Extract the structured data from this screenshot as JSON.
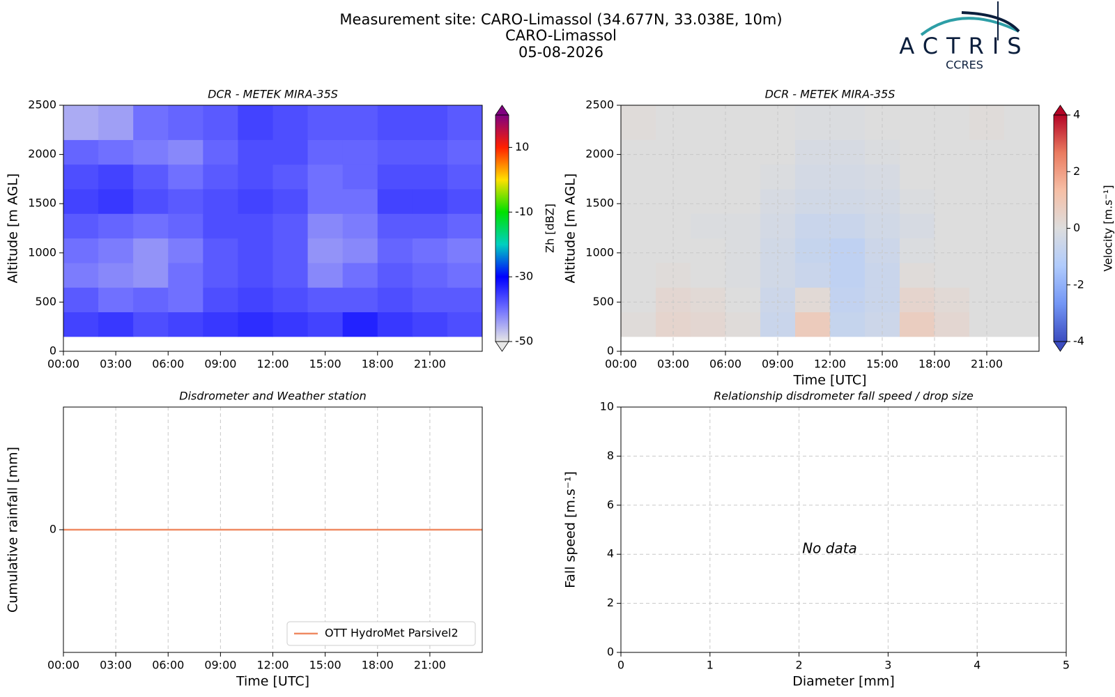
{
  "header": {
    "title_lines": [
      "Measurement site: CARO-Limassol (34.677N, 33.038E, 10m)",
      "CARO-Limassol",
      "05-08-2026"
    ],
    "logo": {
      "name": "ACTRIS",
      "subtitle": "CCRES"
    }
  },
  "chart_data": [
    {
      "type": "heatmap",
      "title": "DCR - METEK MIRA-35S",
      "y_label": "Altitude [m AGL]",
      "xlim": [
        0,
        24
      ],
      "xticks": [
        {
          "value": 0,
          "label": "00:00"
        },
        {
          "value": 3,
          "label": "03:00"
        },
        {
          "value": 6,
          "label": "06:00"
        },
        {
          "value": 9,
          "label": "09:00"
        },
        {
          "value": 12,
          "label": "12:00"
        },
        {
          "value": 15,
          "label": "15:00"
        },
        {
          "value": 18,
          "label": "18:00"
        },
        {
          "value": 21,
          "label": "21:00"
        }
      ],
      "ylim": [
        0,
        2500
      ],
      "yticks": [
        0,
        500,
        1000,
        1500,
        2000,
        2500
      ],
      "grid": false,
      "x_bins": [
        0,
        2,
        4,
        6,
        8,
        10,
        12,
        14,
        16,
        18,
        20,
        22,
        24
      ],
      "y_bins": [
        150,
        400,
        650,
        900,
        1150,
        1400,
        1650,
        1900,
        2150,
        2500
      ],
      "values": [
        [
          -36,
          -35,
          -37,
          -36,
          -35,
          -34,
          -35,
          -36,
          -33,
          -35,
          -36,
          -37
        ],
        [
          -38,
          -40,
          -39,
          -40,
          -37,
          -36,
          -37,
          -38,
          -38,
          -37,
          -38,
          -38
        ],
        [
          -41,
          -42,
          -43,
          -40,
          -38,
          -37,
          -38,
          -42,
          -40,
          -38,
          -39,
          -40
        ],
        [
          -40,
          -41,
          -43,
          -41,
          -38,
          -37,
          -38,
          -43,
          -42,
          -39,
          -40,
          -41
        ],
        [
          -38,
          -39,
          -40,
          -39,
          -37,
          -37,
          -38,
          -42,
          -41,
          -38,
          -38,
          -39
        ],
        [
          -36,
          -35,
          -37,
          -38,
          -37,
          -36,
          -37,
          -40,
          -40,
          -36,
          -36,
          -37
        ],
        [
          -37,
          -36,
          -38,
          -40,
          -38,
          -37,
          -38,
          -40,
          -39,
          -37,
          -37,
          -38
        ],
        [
          -39,
          -40,
          -41,
          -42,
          -39,
          -37,
          -37,
          -39,
          -39,
          -38,
          -38,
          -39
        ],
        [
          -45,
          -44,
          -40,
          -39,
          -38,
          -36,
          -37,
          -38,
          -38,
          -37,
          -37,
          -38
        ]
      ],
      "colorbar_label": "Zh [dBZ]",
      "clim": [
        -50,
        20
      ],
      "cticks": [
        -50,
        -30,
        -10,
        10
      ],
      "colorscale": [
        "#e6e6e6",
        "#7070ff",
        "#0000ff",
        "#00d0c0",
        "#00e000",
        "#ffe000",
        "#ff2000",
        "#800080"
      ]
    },
    {
      "type": "heatmap",
      "title": "DCR - METEK MIRA-35S",
      "y_label": "Altitude [m AGL]",
      "x_label": "Time [UTC]",
      "xlim": [
        0,
        24
      ],
      "xticks": [
        {
          "value": 0,
          "label": "00:00"
        },
        {
          "value": 3,
          "label": "03:00"
        },
        {
          "value": 6,
          "label": "06:00"
        },
        {
          "value": 9,
          "label": "09:00"
        },
        {
          "value": 12,
          "label": "12:00"
        },
        {
          "value": 15,
          "label": "15:00"
        },
        {
          "value": 18,
          "label": "18:00"
        },
        {
          "value": 21,
          "label": "21:00"
        }
      ],
      "ylim": [
        0,
        2500
      ],
      "yticks": [
        0,
        500,
        1000,
        1500,
        2000,
        2500
      ],
      "grid": true,
      "x_bins": [
        0,
        2,
        4,
        6,
        8,
        10,
        12,
        14,
        16,
        18,
        20,
        22,
        24
      ],
      "y_bins": [
        150,
        400,
        650,
        900,
        1150,
        1400,
        1650,
        1900,
        2150,
        2500
      ],
      "values": [
        [
          0.1,
          0.4,
          0.3,
          0.1,
          -0.6,
          0.8,
          -0.7,
          -0.5,
          0.7,
          0.3,
          0,
          0
        ],
        [
          0,
          0.3,
          0.2,
          0,
          -0.5,
          0.2,
          -0.8,
          -0.6,
          0.4,
          0.2,
          0,
          0
        ],
        [
          0,
          0.1,
          0,
          -0.1,
          -0.4,
          -0.6,
          -0.9,
          -0.6,
          0.1,
          0,
          0,
          0
        ],
        [
          0,
          0,
          0,
          -0.1,
          -0.4,
          -0.7,
          -0.9,
          -0.5,
          -0.1,
          0,
          0,
          0
        ],
        [
          0,
          0,
          -0.1,
          -0.1,
          -0.3,
          -0.6,
          -0.6,
          -0.4,
          -0.2,
          0,
          0,
          0
        ],
        [
          0,
          0,
          0,
          0,
          -0.2,
          -0.4,
          -0.4,
          -0.3,
          -0.1,
          0,
          0,
          0
        ],
        [
          0,
          0,
          0,
          0,
          -0.1,
          -0.3,
          -0.3,
          -0.2,
          0,
          0,
          0,
          0
        ],
        [
          0,
          0,
          0,
          0,
          0,
          -0.2,
          -0.2,
          -0.1,
          0,
          0,
          0,
          0
        ],
        [
          0.1,
          0,
          0,
          0,
          0,
          -0.1,
          -0.1,
          0,
          0,
          0,
          0.1,
          0
        ]
      ],
      "colorbar_label": "Velocity [m.s⁻¹]",
      "clim": [
        -4,
        4
      ],
      "cticks": [
        -4,
        -2,
        0,
        2,
        4
      ],
      "colorscale": [
        "#3b4cc0",
        "#7396f5",
        "#b0cbfc",
        "#dddddd",
        "#f6bfa6",
        "#ea7b60",
        "#b40426"
      ]
    },
    {
      "type": "line",
      "title": "Disdrometer and Weather station",
      "y_label": "Cumulative rainfall [mm]",
      "x_label": "Time [UTC]",
      "xlim": [
        0,
        24
      ],
      "xticks": [
        {
          "value": 0,
          "label": "00:00"
        },
        {
          "value": 3,
          "label": "03:00"
        },
        {
          "value": 6,
          "label": "06:00"
        },
        {
          "value": 9,
          "label": "09:00"
        },
        {
          "value": 12,
          "label": "12:00"
        },
        {
          "value": 15,
          "label": "15:00"
        },
        {
          "value": 18,
          "label": "18:00"
        },
        {
          "value": 21,
          "label": "21:00"
        }
      ],
      "ylim": [
        -1,
        1
      ],
      "yticks": [
        0
      ],
      "grid": true,
      "legend": "lower right",
      "x": [
        0,
        24
      ],
      "series": [
        {
          "name": "OTT HydroMet Parsivel2",
          "color": "#ef8a62",
          "values": [
            0,
            0
          ]
        }
      ]
    },
    {
      "type": "scatter",
      "title": "Relationship disdrometer fall speed / drop size",
      "y_label": "Fall speed [m.s⁻¹]",
      "x_label": "Diameter [mm]",
      "xlim": [
        0,
        5
      ],
      "xticks": [
        0,
        1,
        2,
        3,
        4,
        5
      ],
      "ylim": [
        0,
        10
      ],
      "yticks": [
        0,
        2,
        4,
        6,
        8,
        10
      ],
      "grid": true,
      "annotation": "No data"
    }
  ]
}
